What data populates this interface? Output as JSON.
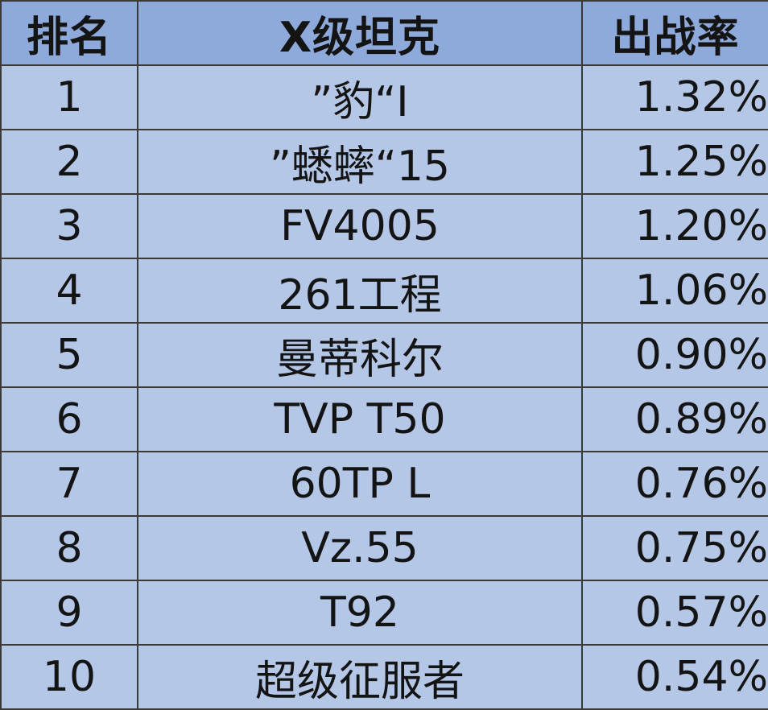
{
  "table": {
    "headers": {
      "rank": "排名",
      "tank": "X级坦克",
      "rate": "出战率"
    },
    "rows": [
      {
        "rank": "1",
        "tank": "”豹“I",
        "rate": "1.32%"
      },
      {
        "rank": "2",
        "tank": "”蟋蟀“15",
        "rate": "1.25%"
      },
      {
        "rank": "3",
        "tank": "FV4005",
        "rate": "1.20%"
      },
      {
        "rank": "4",
        "tank": "261工程",
        "rate": "1.06%"
      },
      {
        "rank": "5",
        "tank": "曼蒂科尔",
        "rate": "0.90%"
      },
      {
        "rank": "6",
        "tank": "TVP T50",
        "rate": "0.89%"
      },
      {
        "rank": "7",
        "tank": "60TP L",
        "rate": "0.76%"
      },
      {
        "rank": "8",
        "tank": "Vz.55",
        "rate": "0.75%"
      },
      {
        "rank": "9",
        "tank": "T92",
        "rate": "0.57%"
      },
      {
        "rank": "10",
        "tank": "超级征服者",
        "rate": "0.54%"
      }
    ]
  },
  "colors": {
    "header_bg": "#8eaadb",
    "row_bg": "#b4c7e7",
    "border": "#3a3a3a",
    "text": "#141414"
  }
}
